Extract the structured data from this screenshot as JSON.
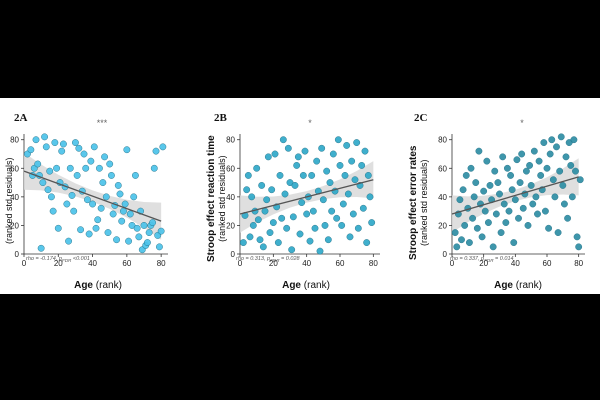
{
  "colors": {
    "background": "#000000",
    "plot_background": "#ffffff",
    "point_A": "#4cc3ea",
    "point_B": "#2fa9c9",
    "point_C": "#2e8ea4",
    "trend_line": "#555555",
    "confidence_band": "#d9d9d9"
  },
  "chart_data": [
    {
      "type": "scatter",
      "panel": "2A",
      "significance": "***",
      "xlabel": "Age",
      "xlabel_suffix": "(rank)",
      "ylabel_main": "",
      "ylabel_sub": "(ranked std residuals)",
      "stat": "rho = -0.174, p",
      "stat_sub": "FDR",
      "stat_tail": " <0.001",
      "xlim": [
        0,
        84
      ],
      "ylim": [
        0,
        84
      ],
      "x_ticks": [
        "0",
        "20",
        "40",
        "60",
        "80"
      ],
      "y_ticks": [
        "0",
        "20",
        "40",
        "60",
        "80"
      ],
      "trend": {
        "x": [
          0,
          80
        ],
        "y": [
          58,
          23
        ]
      },
      "points": {
        "x": [
          2,
          4,
          5,
          6,
          7,
          8,
          9,
          10,
          11,
          12,
          13,
          14,
          15,
          16,
          17,
          18,
          19,
          20,
          21,
          22,
          23,
          24,
          25,
          26,
          27,
          28,
          29,
          30,
          31,
          32,
          33,
          34,
          35,
          36,
          37,
          38,
          39,
          40,
          41,
          42,
          43,
          44,
          45,
          46,
          47,
          48,
          49,
          50,
          51,
          52,
          53,
          54,
          55,
          56,
          57,
          58,
          59,
          60,
          61,
          62,
          63,
          64,
          65,
          66,
          67,
          68,
          69,
          70,
          71,
          72,
          73,
          74,
          75,
          76,
          77,
          78,
          79,
          80,
          81
        ],
        "y": [
          70,
          73,
          55,
          60,
          80,
          63,
          55,
          4,
          50,
          82,
          75,
          45,
          58,
          40,
          30,
          78,
          60,
          18,
          50,
          72,
          77,
          47,
          35,
          9,
          60,
          41,
          30,
          78,
          55,
          74,
          17,
          44,
          70,
          60,
          38,
          14,
          65,
          35,
          75,
          18,
          24,
          60,
          32,
          50,
          68,
          40,
          15,
          63,
          55,
          28,
          34,
          10,
          48,
          42,
          23,
          30,
          35,
          73,
          9,
          28,
          20,
          40,
          55,
          18,
          12,
          30,
          3,
          20,
          6,
          8,
          15,
          20,
          22,
          60,
          72,
          13,
          5,
          16,
          75
        ]
      }
    },
    {
      "type": "scatter",
      "panel": "2B",
      "significance": "*",
      "xlabel": "Age",
      "xlabel_suffix": "(rank)",
      "ylabel_main": "Stroop effect reaction time",
      "ylabel_sub": "(ranked std residuals)",
      "stat": "rho = 0.313, p",
      "stat_sub": "FDR",
      "stat_tail": " = 0.028",
      "xlim": [
        0,
        84
      ],
      "ylim": [
        0,
        84
      ],
      "x_ticks": [
        "0",
        "20",
        "40",
        "60",
        "80"
      ],
      "y_ticks": [
        "0",
        "20",
        "40",
        "60",
        "80"
      ],
      "trend": {
        "x": [
          0,
          80
        ],
        "y": [
          28,
          52
        ]
      },
      "points": {
        "x": [
          2,
          3,
          4,
          5,
          6,
          7,
          8,
          9,
          10,
          11,
          12,
          13,
          14,
          15,
          16,
          17,
          18,
          19,
          20,
          21,
          22,
          23,
          24,
          25,
          26,
          27,
          28,
          29,
          30,
          31,
          32,
          33,
          34,
          35,
          36,
          37,
          38,
          39,
          40,
          41,
          42,
          43,
          44,
          45,
          46,
          47,
          48,
          49,
          50,
          51,
          52,
          53,
          54,
          55,
          56,
          57,
          58,
          59,
          60,
          61,
          62,
          63,
          64,
          65,
          66,
          67,
          68,
          69,
          70,
          71,
          72,
          73,
          74,
          75,
          76,
          77,
          78,
          79
        ],
        "y": [
          8,
          27,
          45,
          55,
          12,
          40,
          20,
          30,
          60,
          24,
          10,
          48,
          5,
          30,
          38,
          68,
          15,
          45,
          22,
          70,
          33,
          8,
          55,
          25,
          80,
          42,
          18,
          74,
          50,
          3,
          26,
          48,
          62,
          68,
          14,
          36,
          55,
          72,
          28,
          40,
          9,
          55,
          30,
          18,
          65,
          44,
          2,
          74,
          38,
          20,
          58,
          10,
          50,
          30,
          70,
          44,
          25,
          80,
          62,
          20,
          35,
          55,
          76,
          42,
          12,
          65,
          28,
          52,
          78,
          18,
          48,
          62,
          32,
          72,
          8,
          55,
          40,
          22
        ]
      }
    },
    {
      "type": "scatter",
      "panel": "2C",
      "significance": "*",
      "xlabel": "Age",
      "xlabel_suffix": "(rank)",
      "ylabel_main": "Stroop effect error rates",
      "ylabel_sub": "(ranked std residuals)",
      "stat": "rho = 0.337, p",
      "stat_sub": "FDR",
      "stat_tail": " = 0.014",
      "xlim": [
        0,
        84
      ],
      "ylim": [
        0,
        84
      ],
      "x_ticks": [
        "0",
        "20",
        "40",
        "60",
        "80"
      ],
      "y_ticks": [
        "0",
        "20",
        "40",
        "60",
        "80"
      ],
      "trend": {
        "x": [
          0,
          80
        ],
        "y": [
          28,
          54
        ]
      },
      "points": {
        "x": [
          2,
          3,
          4,
          5,
          6,
          7,
          8,
          9,
          10,
          11,
          12,
          13,
          14,
          15,
          16,
          17,
          18,
          19,
          20,
          21,
          22,
          23,
          24,
          25,
          26,
          27,
          28,
          29,
          30,
          31,
          32,
          33,
          34,
          35,
          36,
          37,
          38,
          39,
          40,
          41,
          42,
          43,
          44,
          45,
          46,
          47,
          48,
          49,
          50,
          51,
          52,
          53,
          54,
          55,
          56,
          57,
          58,
          59,
          60,
          61,
          62,
          63,
          64,
          65,
          66,
          67,
          68,
          69,
          70,
          71,
          72,
          73,
          74,
          75,
          76,
          77,
          78,
          79,
          80,
          81
        ],
        "y": [
          15,
          5,
          28,
          38,
          10,
          45,
          20,
          55,
          32,
          8,
          60,
          25,
          40,
          50,
          18,
          72,
          35,
          12,
          44,
          30,
          65,
          22,
          48,
          38,
          5,
          58,
          28,
          50,
          42,
          15,
          68,
          35,
          22,
          60,
          30,
          55,
          45,
          8,
          38,
          66,
          25,
          50,
          70,
          32,
          42,
          58,
          20,
          62,
          48,
          35,
          72,
          40,
          28,
          65,
          55,
          45,
          78,
          30,
          60,
          18,
          70,
          80,
          52,
          40,
          75,
          15,
          58,
          82,
          48,
          35,
          68,
          25,
          78,
          62,
          40,
          80,
          58,
          12,
          5,
          52
        ]
      }
    }
  ]
}
